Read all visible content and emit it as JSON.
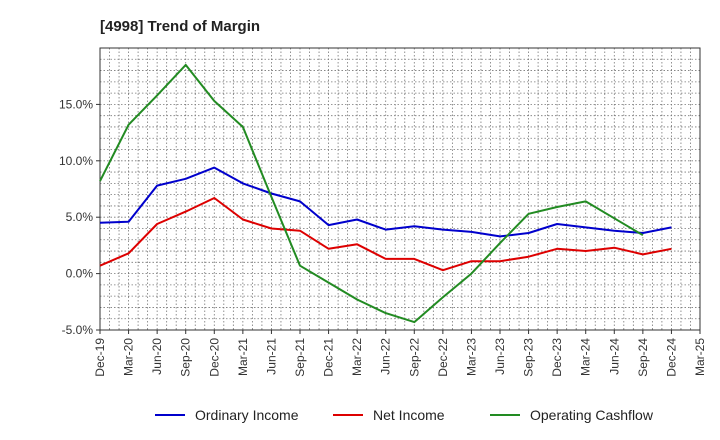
{
  "chart_data": {
    "type": "line",
    "title": "[4998]  Trend of Margin",
    "xlabel": "",
    "ylabel": "",
    "categories": [
      "Dec-19",
      "Mar-20",
      "Jun-20",
      "Sep-20",
      "Dec-20",
      "Mar-21",
      "Jun-21",
      "Sep-21",
      "Dec-21",
      "Mar-22",
      "Jun-22",
      "Sep-22",
      "Dec-22",
      "Mar-23",
      "Jun-23",
      "Sep-23",
      "Dec-23",
      "Mar-24",
      "Jun-24",
      "Sep-24",
      "Dec-24",
      "Mar-25"
    ],
    "ylim": [
      -5,
      20
    ],
    "yticks": [
      -5,
      0,
      5,
      10,
      15
    ],
    "ytick_labels": [
      "-5.0%",
      "0.0%",
      "5.0%",
      "10.0%",
      "15.0%"
    ],
    "grid": true,
    "legend_position": "bottom",
    "series": [
      {
        "name": "Ordinary Income",
        "color": "#0000cc",
        "values": [
          4.5,
          4.6,
          7.8,
          8.4,
          9.4,
          8.0,
          7.1,
          6.4,
          4.3,
          4.8,
          3.9,
          4.2,
          3.9,
          3.7,
          3.3,
          3.6,
          4.4,
          4.1,
          3.8,
          3.6,
          4.1,
          null
        ]
      },
      {
        "name": "Net Income",
        "color": "#dd0000",
        "values": [
          0.7,
          1.8,
          4.4,
          5.5,
          6.7,
          4.8,
          4.0,
          3.8,
          2.2,
          2.6,
          1.3,
          1.3,
          0.3,
          1.1,
          1.1,
          1.5,
          2.2,
          2.0,
          2.3,
          1.7,
          2.2,
          null
        ]
      },
      {
        "name": "Operating Cashflow",
        "color": "#228b22",
        "values": [
          8.2,
          13.2,
          15.8,
          18.5,
          15.3,
          13.0,
          6.8,
          0.7,
          -0.8,
          -2.3,
          -3.5,
          -4.3,
          -2.1,
          0.0,
          2.7,
          5.3,
          5.9,
          6.4,
          4.9,
          3.4,
          null,
          null
        ]
      }
    ]
  }
}
